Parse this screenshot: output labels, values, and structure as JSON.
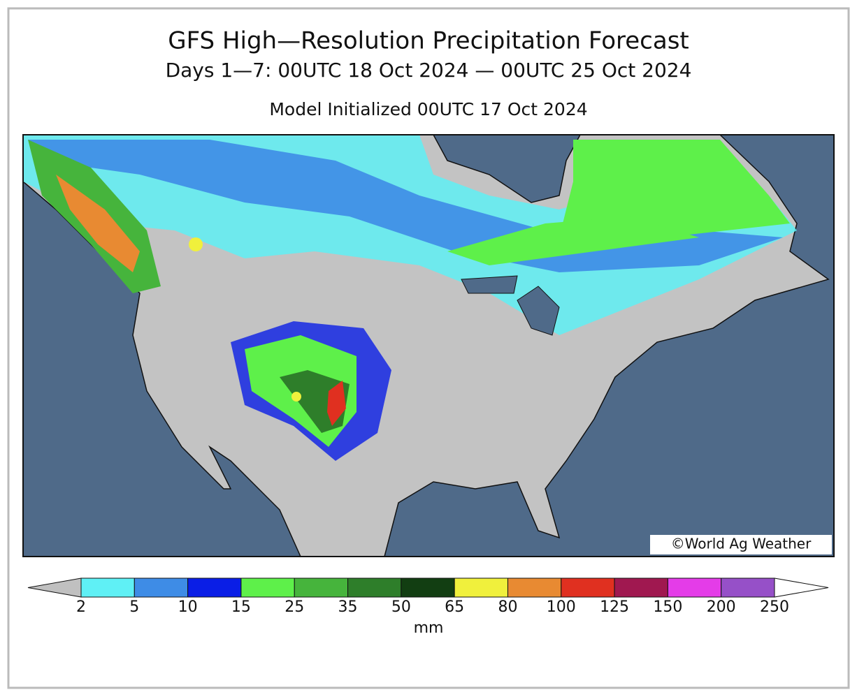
{
  "header": {
    "title": "GFS High—Resolution Precipitation Forecast",
    "subtitle": "Days 1—7: 00UTC 18 Oct 2024 — 00UTC 25 Oct 2024",
    "initialized": "Model Initialized 00UTC 17 Oct 2024"
  },
  "map": {
    "credit": "©World Ag Weather"
  },
  "colorbar": {
    "levels": [
      2,
      5,
      10,
      15,
      25,
      35,
      50,
      65,
      80,
      100,
      125,
      150,
      200,
      250
    ],
    "colors": [
      "#5ff0f5",
      "#3e8ce6",
      "#0a1ee6",
      "#5ef04a",
      "#46b43c",
      "#2e7e2a",
      "#123e12",
      "#f0f03c",
      "#e88a32",
      "#e03020",
      "#a01850",
      "#e43ce8",
      "#9650c8"
    ],
    "under_color": "#c0c0c0",
    "over_color": "#ffffff",
    "unit": "mm"
  }
}
